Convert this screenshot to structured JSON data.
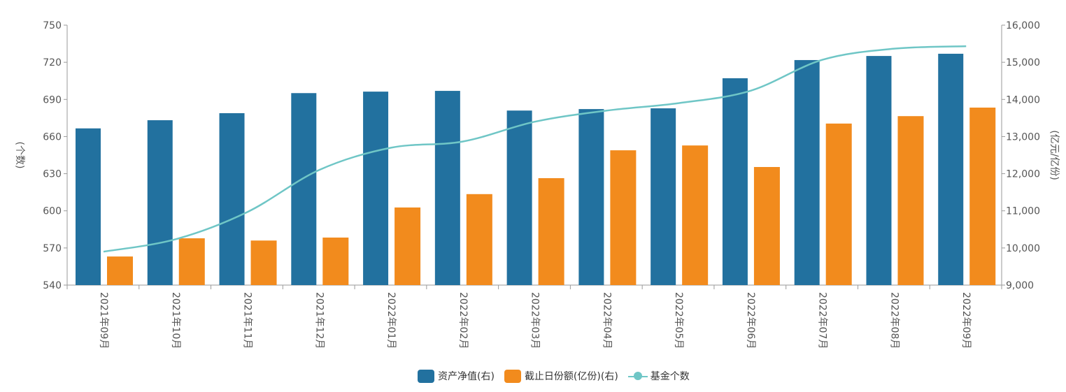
{
  "chart_data": {
    "type": "bar",
    "categories": [
      "2021年09月",
      "2021年10月",
      "2021年11月",
      "2021年12月",
      "2022年01月",
      "2022年02月",
      "2022年03月",
      "2022年04月",
      "2022年05月",
      "2022年06月",
      "2022年07月",
      "2022年08月",
      "2022年09月"
    ],
    "series": [
      {
        "name": "资产净值(右)",
        "type": "bar",
        "axis": "right",
        "color": "#22719f",
        "values": [
          13220,
          13440,
          13630,
          14170,
          14210,
          14230,
          13700,
          13740,
          13760,
          14570,
          15060,
          15170,
          15230
        ]
      },
      {
        "name": "截止日份额(亿份)(右)",
        "type": "bar",
        "axis": "right",
        "color": "#f28b1d",
        "values": [
          9770,
          10260,
          10200,
          10280,
          11090,
          11450,
          11880,
          12630,
          12760,
          12180,
          13350,
          13550,
          13780
        ]
      },
      {
        "name": "基金个数",
        "type": "line",
        "axis": "left",
        "color": "#6fc6c6",
        "values": [
          567,
          577,
          599,
          633,
          651,
          656,
          672,
          681,
          687,
          697,
          722,
          731,
          733
        ]
      }
    ],
    "left_axis": {
      "label": "(个数)",
      "range": [
        540,
        750
      ],
      "ticks": [
        "540",
        "570",
        "600",
        "630",
        "660",
        "690",
        "720",
        "750"
      ]
    },
    "right_axis": {
      "label": "(亿元/亿份)",
      "range": [
        9000,
        16000
      ],
      "ticks": [
        "9,000",
        "10,000",
        "11,000",
        "12,000",
        "13,000",
        "14,000",
        "15,000",
        "16,000"
      ]
    },
    "grid": false,
    "legend_position": "bottom"
  }
}
